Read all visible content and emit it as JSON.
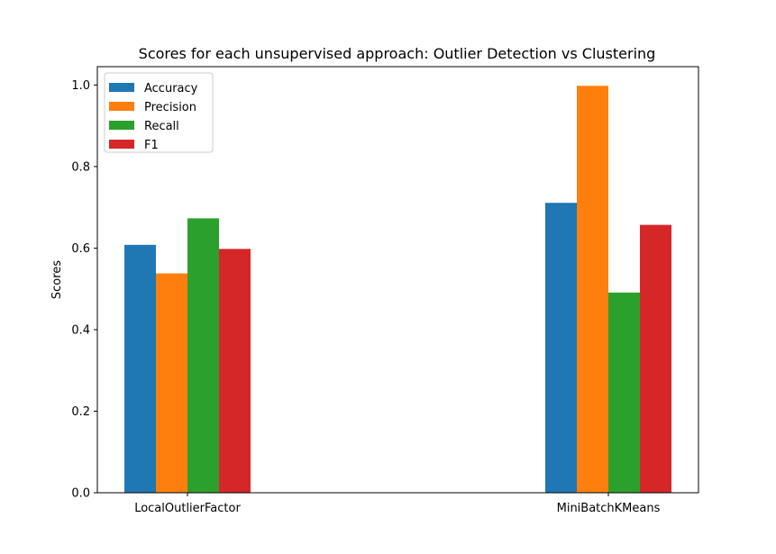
{
  "chart_data": {
    "type": "bar",
    "title": "Scores for each unsupervised approach: Outlier Detection vs Clustering",
    "xlabel": "",
    "ylabel": "Scores",
    "categories": [
      "LocalOutlierFactor",
      "MiniBatchKMeans"
    ],
    "series": [
      {
        "name": "Accuracy",
        "color": "#1f77b4",
        "values": [
          0.608,
          0.711
        ]
      },
      {
        "name": "Precision",
        "color": "#ff7f0e",
        "values": [
          0.538,
          0.998
        ]
      },
      {
        "name": "Recall",
        "color": "#2ca02c",
        "values": [
          0.673,
          0.491
        ]
      },
      {
        "name": "F1",
        "color": "#d62728",
        "values": [
          0.598,
          0.657
        ]
      }
    ],
    "ylim": [
      0,
      1.045
    ],
    "yticks": [
      0.0,
      0.2,
      0.4,
      0.6,
      0.8,
      1.0
    ],
    "ytick_labels": [
      "0.0",
      "0.2",
      "0.4",
      "0.6",
      "0.8",
      "1.0"
    ],
    "grid": false,
    "legend_position": "top-left"
  }
}
